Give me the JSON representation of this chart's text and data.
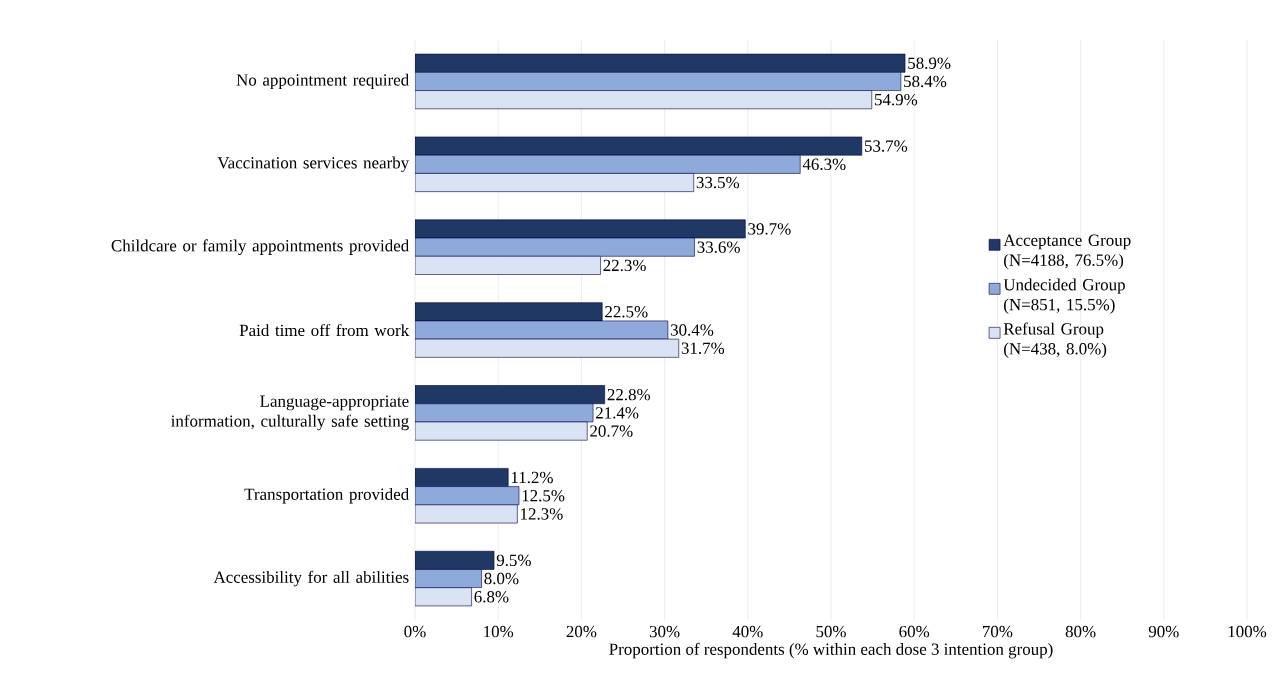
{
  "chart_data": {
    "type": "bar",
    "orientation": "horizontal",
    "xlabel": "Proportion of respondents (% within each dose 3 intention group)",
    "categories": [
      "No appointment required",
      "Vaccination services nearby",
      "Childcare or family appointments provided",
      "Paid time off from work",
      "Language-appropriate information, culturally safe setting",
      "Transportation provided",
      "Accessibility for all abilities"
    ],
    "series": [
      {
        "name": "Acceptance Group (N=4188, 76.5%)",
        "color": "#1f3864",
        "values": [
          58.9,
          53.7,
          39.7,
          22.5,
          22.8,
          11.2,
          9.5
        ],
        "value_labels": [
          "58.9%",
          "53.7%",
          "39.7%",
          "22.5%",
          "22.8%",
          "11.2%",
          "9.5%"
        ]
      },
      {
        "name": "Undecided Group (N=851, 15.5%)",
        "color": "#8eaadb",
        "values": [
          58.4,
          46.3,
          33.6,
          30.4,
          21.4,
          12.5,
          8.0
        ],
        "value_labels": [
          "58.4%",
          "46.3%",
          "33.6%",
          "30.4%",
          "21.4%",
          "12.5%",
          "8.0%"
        ]
      },
      {
        "name": "Refusal Group (N=438, 8.0%)",
        "color": "#dae3f3",
        "values": [
          54.9,
          33.5,
          22.3,
          31.7,
          20.7,
          12.3,
          6.8
        ],
        "value_labels": [
          "54.9%",
          "33.5%",
          "22.3%",
          "31.7%",
          "20.7%",
          "12.3%",
          "6.8%"
        ]
      }
    ],
    "xlim": [
      0,
      100
    ],
    "xticks": [
      {
        "value": 0,
        "label": "0%"
      },
      {
        "value": 10,
        "label": "10%"
      },
      {
        "value": 20,
        "label": "20%"
      },
      {
        "value": 30,
        "label": "30%"
      },
      {
        "value": 40,
        "label": "40%"
      },
      {
        "value": 50,
        "label": "50%"
      },
      {
        "value": 60,
        "label": "60%"
      },
      {
        "value": 70,
        "label": "70%"
      },
      {
        "value": 80,
        "label": "80%"
      },
      {
        "value": 90,
        "label": "90%"
      },
      {
        "value": 100,
        "label": "100%"
      }
    ],
    "grid": "x",
    "legend": "right"
  }
}
